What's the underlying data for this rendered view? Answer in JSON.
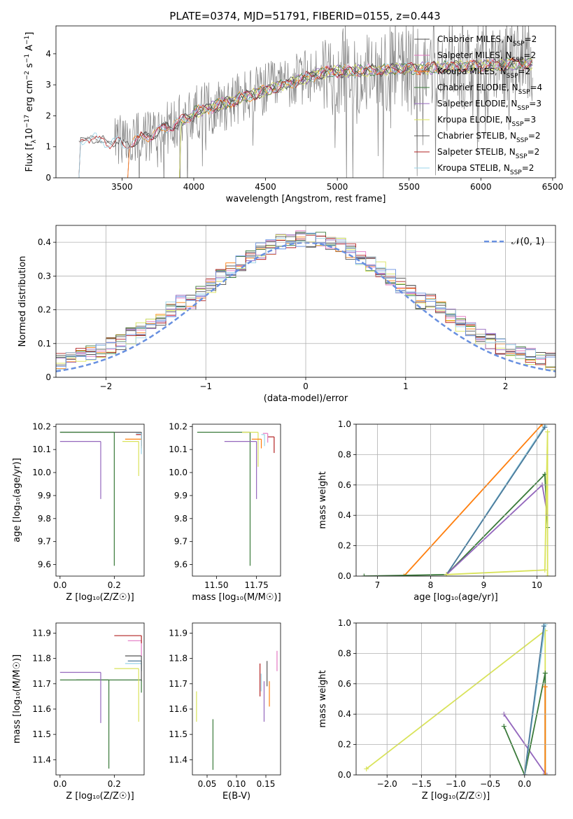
{
  "figure": {
    "title": "PLATE=0374, MJD=51791, FIBERID=0155, z=0.443"
  },
  "chart_data": [
    {
      "id": "spectrum",
      "type": "line",
      "xlabel": "wavelength [Angstrom, rest frame]",
      "ylabel_html": "Flux [f<tspan baseline-shift=\"sub\" font-size=\"9\">λ</tspan>10<tspan baseline-shift=\"super\" font-size=\"9\">−17</tspan> erg cm<tspan baseline-shift=\"super\" font-size=\"9\">−2</tspan> s<tspan baseline-shift=\"super\" font-size=\"9\">−1</tspan> A<tspan baseline-shift=\"super\" font-size=\"9\">−1</tspan>]",
      "xlim": [
        3040,
        6520
      ],
      "ylim": [
        0,
        4.9
      ],
      "xticks": [
        3500,
        4000,
        4500,
        5000,
        5500,
        6000,
        6500
      ],
      "yticks": [
        0,
        1,
        2,
        3,
        4
      ],
      "grid": false,
      "legend_position": "upper right",
      "series": [
        {
          "name": "Chabrier MILES, N",
          "sub": "SSP",
          "suffix": "=2",
          "color": "#4c4c4c",
          "start": 3540
        },
        {
          "name": "Salpeter MILES, N",
          "sub": "SSP",
          "suffix": "=2",
          "color": "#e377c2",
          "start": 3540
        },
        {
          "name": "Kroupa MILES, N",
          "sub": "SSP",
          "suffix": "=2",
          "color": "#ff7f0e",
          "start": 3540
        },
        {
          "name": "Chabrier ELODIE, N",
          "sub": "SSP",
          "suffix": "=4",
          "color": "#3a7a3a",
          "start": 3900
        },
        {
          "name": "Salpeter ELODIE, N",
          "sub": "SSP",
          "suffix": "=3",
          "color": "#9467bd",
          "start": 3900
        },
        {
          "name": "Kroupa ELODIE, N",
          "sub": "SSP",
          "suffix": "=3",
          "color": "#d9e35a",
          "start": 3900
        },
        {
          "name": "Chabrier STELIB, N",
          "sub": "SSP",
          "suffix": "=2",
          "color": "#555555",
          "start": 3200
        },
        {
          "name": "Salpeter STELIB, N",
          "sub": "SSP",
          "suffix": "=2",
          "color": "#b22222",
          "start": 3200
        },
        {
          "name": "Kroupa STELIB, N",
          "sub": "SSP",
          "suffix": "=2",
          "color": "#9ad4e8",
          "start": 3200
        }
      ],
      "data_color": "#808080"
    },
    {
      "id": "residuals",
      "type": "line",
      "xlabel": "(data-model)/error",
      "ylabel": "Normed distribution",
      "xlim": [
        -2.5,
        2.5
      ],
      "ylim": [
        0,
        0.45
      ],
      "xticks": [
        -2,
        -1,
        0,
        1,
        2
      ],
      "xtick_labels": [
        "−2",
        "−1",
        "0",
        "1",
        "2"
      ],
      "yticks": [
        0,
        0.1,
        0.2,
        0.3,
        0.4
      ],
      "grid": true,
      "legend_position": "upper right",
      "gaussian_label": "𝒩(0, 1)",
      "gaussian_color": "#6890e0"
    },
    {
      "id": "z-vs-age",
      "type": "scatter",
      "xlabel": "Z [log₁₀(Z/Z☉)]",
      "ylabel": "age  [log₁₀(age/yr)]",
      "xlim": [
        -0.015,
        0.31
      ],
      "ylim": [
        9.55,
        10.21
      ],
      "xticks": [
        0,
        0.2
      ],
      "xtick_labels": [
        "0.0",
        "0.2"
      ],
      "yticks": [
        9.6,
        9.7,
        9.8,
        9.9,
        10.0,
        10.1,
        10.2
      ],
      "ytick_labels": [
        "9.6",
        "9.7",
        "9.8",
        "9.9",
        "10.0",
        "10.1",
        "10.2"
      ],
      "points": [
        {
          "x": 0.3,
          "y": 10.175,
          "xerr": 0.3,
          "yerr": 0.03,
          "color": "#555555"
        },
        {
          "x": 0.2,
          "y": 10.175,
          "xerr": 0.2,
          "yerr": 0.58,
          "color": "#3a7a3a"
        },
        {
          "x": 0.15,
          "y": 10.135,
          "xerr": 0.15,
          "yerr": 0.25,
          "color": "#9467bd"
        },
        {
          "x": 0.29,
          "y": 10.135,
          "xerr": 0.06,
          "yerr": 0.15,
          "color": "#d9e35a"
        },
        {
          "x": 0.3,
          "y": 10.145,
          "xerr": 0.06,
          "yerr": 0.04,
          "color": "#ff7f0e"
        },
        {
          "x": 0.3,
          "y": 10.165,
          "xerr": 0.02,
          "yerr": 0.05,
          "color": "#b22222"
        },
        {
          "x": 0.3,
          "y": 10.17,
          "xerr": 0.02,
          "yerr": 0.09,
          "color": "#9ad4e8"
        }
      ]
    },
    {
      "id": "mass-vs-age",
      "type": "scatter",
      "xlabel": "mass [log₁₀(M/M☉)]",
      "ylabel": "",
      "xlim": [
        11.35,
        11.9
      ],
      "ylim": [
        9.55,
        10.21
      ],
      "xticks": [
        11.5,
        11.75
      ],
      "xtick_labels": [
        "11.50",
        "11.75"
      ],
      "yticks": [
        9.6,
        9.7,
        9.8,
        9.9,
        10.0,
        10.1,
        10.2
      ],
      "ytick_labels": [
        "9.6",
        "9.7",
        "9.8",
        "9.9",
        "10.0",
        "10.1",
        "10.2"
      ],
      "points": [
        {
          "x": 11.71,
          "y": 10.175,
          "xerr": 0.33,
          "yerr": 0.58,
          "color": "#3a7a3a"
        },
        {
          "x": 11.75,
          "y": 10.135,
          "xerr": 0.2,
          "yerr": 0.25,
          "color": "#9467bd"
        },
        {
          "x": 11.76,
          "y": 10.175,
          "xerr": 0.1,
          "yerr": 0.15,
          "color": "#d9e35a"
        },
        {
          "x": 11.78,
          "y": 10.145,
          "xerr": 0.06,
          "yerr": 0.04,
          "color": "#ff7f0e"
        },
        {
          "x": 11.86,
          "y": 10.155,
          "xerr": 0.04,
          "yerr": 0.07,
          "color": "#b22222"
        },
        {
          "x": 11.8,
          "y": 10.165,
          "xerr": 0.02,
          "yerr": 0.05,
          "color": "#9ad4e8"
        },
        {
          "x": 11.82,
          "y": 10.17,
          "xerr": 0.03,
          "yerr": 0.04,
          "color": "#e377c2"
        }
      ]
    },
    {
      "id": "age-vs-weight",
      "type": "line",
      "xlabel": "age  [log₁₀(age/yr)]",
      "ylabel": "mass weight",
      "xlim": [
        6.6,
        10.35
      ],
      "ylim": [
        0,
        1
      ],
      "xticks": [
        7,
        8,
        9,
        10
      ],
      "yticks": [
        0,
        0.2,
        0.4,
        0.6,
        0.8,
        1.0
      ],
      "ytick_labels": [
        "0.0",
        "0.2",
        "0.4",
        "0.6",
        "0.8",
        "1.0"
      ],
      "grid": true,
      "series": [
        {
          "color": "#ff7f0e",
          "x": [
            7.5,
            10.1
          ],
          "y": [
            0.0,
            1.0
          ]
        },
        {
          "color": "#9ad4e8",
          "x": [
            8.3,
            10.15
          ],
          "y": [
            0.01,
            0.99
          ]
        },
        {
          "color": "#4c7a9a",
          "x": [
            8.3,
            10.15
          ],
          "y": [
            0.01,
            0.98
          ]
        },
        {
          "color": "#3a7a3a",
          "x": [
            6.75,
            8.3,
            10.15,
            10.2
          ],
          "y": [
            0.0,
            0.01,
            0.67,
            0.32
          ]
        },
        {
          "color": "#9467bd",
          "x": [
            8.3,
            10.1,
            10.2
          ],
          "y": [
            0.01,
            0.6,
            0.4
          ]
        },
        {
          "color": "#d9e35a",
          "x": [
            8.3,
            10.15,
            10.2,
            10.2
          ],
          "y": [
            0.01,
            0.04,
            0.95,
            0.0
          ]
        }
      ]
    },
    {
      "id": "z-vs-mass",
      "type": "scatter",
      "xlabel": "Z [log₁₀(Z/Z☉)]",
      "ylabel": "mass [log₁₀(M/M☉)]",
      "xlim": [
        -0.015,
        0.31
      ],
      "ylim": [
        11.34,
        11.94
      ],
      "xticks": [
        0,
        0.2
      ],
      "xtick_labels": [
        "0.0",
        "0.2"
      ],
      "yticks": [
        11.4,
        11.5,
        11.6,
        11.7,
        11.8,
        11.9
      ],
      "ytick_labels": [
        "11.4",
        "11.5",
        "11.6",
        "11.7",
        "11.8",
        "11.9"
      ],
      "points": [
        {
          "x": 0.3,
          "y": 11.715,
          "xerr": 0.3,
          "yerr": 0.05,
          "color": "#3a7a3a"
        },
        {
          "x": 0.18,
          "y": 11.715,
          "xerr": 0.12,
          "yerr": 0.35,
          "color": "#3a7a3a"
        },
        {
          "x": 0.15,
          "y": 11.745,
          "xerr": 0.15,
          "yerr": 0.2,
          "color": "#9467bd"
        },
        {
          "x": 0.29,
          "y": 11.76,
          "xerr": 0.09,
          "yerr": 0.21,
          "color": "#d9e35a"
        },
        {
          "x": 0.3,
          "y": 11.78,
          "xerr": 0.06,
          "yerr": 0.03,
          "color": "#9ad4e8"
        },
        {
          "x": 0.3,
          "y": 11.79,
          "xerr": 0.05,
          "yerr": 0.04,
          "color": "#4c7a9a"
        },
        {
          "x": 0.3,
          "y": 11.81,
          "xerr": 0.06,
          "yerr": 0.1,
          "color": "#555555"
        },
        {
          "x": 0.3,
          "y": 11.87,
          "xerr": 0.05,
          "yerr": 0.06,
          "color": "#e377c2"
        },
        {
          "x": 0.3,
          "y": 11.89,
          "xerr": 0.1,
          "yerr": 0.03,
          "color": "#b22222"
        }
      ]
    },
    {
      "id": "ebv-vs-mass",
      "type": "scatter",
      "xlabel": "E(B-V)",
      "ylabel": "",
      "xlim": [
        0.025,
        0.175
      ],
      "ylim": [
        11.34,
        11.94
      ],
      "xticks": [
        0.05,
        0.1,
        0.15
      ],
      "xtick_labels": [
        "0.05",
        "0.10",
        "0.15"
      ],
      "yticks": [
        11.4,
        11.5,
        11.6,
        11.7,
        11.8,
        11.9
      ],
      "ytick_labels": [
        "11.4",
        "11.5",
        "11.6",
        "11.7",
        "11.8",
        "11.9"
      ],
      "points": [
        {
          "x": 0.032,
          "y": 11.67,
          "yerr": 0.12,
          "color": "#d9e35a"
        },
        {
          "x": 0.06,
          "y": 11.56,
          "yerr": 0.2,
          "color": "#3a7a3a"
        },
        {
          "x": 0.14,
          "y": 11.78,
          "yerr": 0.13,
          "color": "#b22222"
        },
        {
          "x": 0.142,
          "y": 11.74,
          "yerr": 0.07,
          "color": "#9ad4e8"
        },
        {
          "x": 0.147,
          "y": 11.71,
          "yerr": 0.16,
          "color": "#9467bd"
        },
        {
          "x": 0.152,
          "y": 11.79,
          "yerr": 0.1,
          "color": "#555555"
        },
        {
          "x": 0.156,
          "y": 11.71,
          "yerr": 0.1,
          "color": "#ff7f0e"
        },
        {
          "x": 0.169,
          "y": 11.83,
          "yerr": 0.08,
          "color": "#e377c2"
        }
      ]
    },
    {
      "id": "z-vs-weight",
      "type": "line",
      "xlabel": "Z [log₁₀(Z/Z☉)]",
      "ylabel": "mass weight",
      "xlim": [
        -2.45,
        0.45
      ],
      "ylim": [
        0,
        1
      ],
      "xticks": [
        -2.0,
        -1.5,
        -1.0,
        -0.5,
        0.0
      ],
      "xtick_labels": [
        "−2.0",
        "−1.5",
        "−1.0",
        "−0.5",
        "0.0"
      ],
      "yticks": [
        0,
        0.2,
        0.4,
        0.6,
        0.8,
        1.0
      ],
      "ytick_labels": [
        "0.0",
        "0.2",
        "0.4",
        "0.6",
        "0.8",
        "1.0"
      ],
      "grid": true,
      "series": [
        {
          "color": "#d9e35a",
          "x": [
            -2.3,
            0.3,
            0.3
          ],
          "y": [
            0.04,
            0.95,
            0.0
          ]
        },
        {
          "color": "#9467bd",
          "x": [
            -0.3,
            0.3
          ],
          "y": [
            0.4,
            0.01
          ]
        },
        {
          "color": "#3a7a3a",
          "x": [
            -0.3,
            0.0,
            0.3,
            0.3
          ],
          "y": [
            0.32,
            0.0,
            0.67,
            0.0
          ]
        },
        {
          "color": "#9ad4e8",
          "x": [
            0.0,
            0.3
          ],
          "y": [
            0.0,
            0.99
          ]
        },
        {
          "color": "#4c7a9a",
          "x": [
            0.0,
            0.28
          ],
          "y": [
            0.0,
            0.98
          ]
        },
        {
          "color": "#ff7f0e",
          "x": [
            0.3,
            0.3
          ],
          "y": [
            0.0,
            0.58
          ]
        }
      ]
    }
  ]
}
